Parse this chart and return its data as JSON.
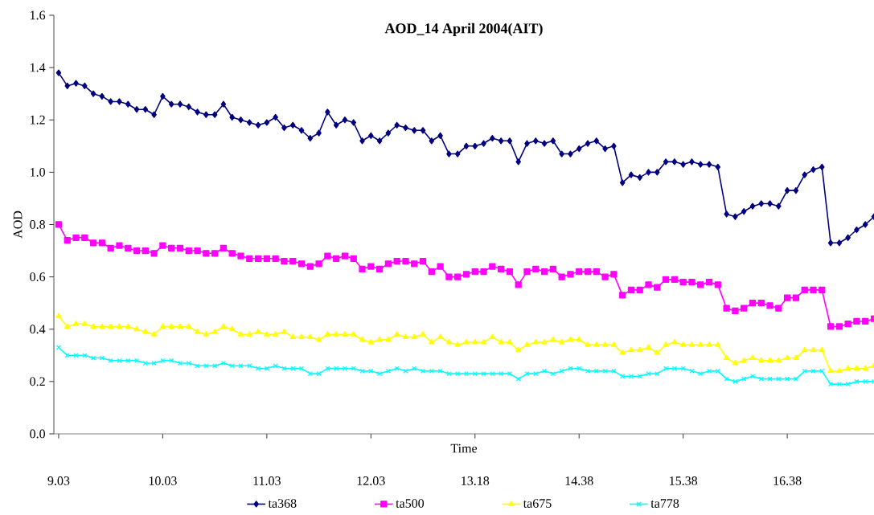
{
  "chart_data": {
    "type": "line",
    "title": "AOD_14 April  2004(AIT)",
    "xlabel": "Time",
    "ylabel": "AOD",
    "categories": [
      "9.03",
      null,
      null,
      null,
      null,
      null,
      null,
      null,
      null,
      null,
      null,
      null,
      "10.03",
      null,
      null,
      null,
      null,
      null,
      null,
      null,
      null,
      null,
      null,
      null,
      "11.03",
      null,
      null,
      null,
      null,
      null,
      null,
      null,
      null,
      null,
      null,
      null,
      "12.03",
      null,
      null,
      null,
      null,
      null,
      null,
      null,
      null,
      null,
      null,
      null,
      "13.18",
      null,
      null,
      null,
      null,
      null,
      null,
      null,
      null,
      null,
      null,
      null,
      "14.38",
      null,
      null,
      null,
      null,
      null,
      null,
      null,
      null,
      null,
      null,
      null,
      "15.38",
      null,
      null,
      null,
      null,
      null,
      null,
      null,
      null,
      null,
      null,
      null,
      "16.38",
      null,
      null,
      null,
      null,
      null,
      null,
      null,
      null,
      null,
      null
    ],
    "series": [
      {
        "name": "ta368",
        "color": "#000080",
        "marker": "diamond",
        "values": [
          1.38,
          1.33,
          1.34,
          1.33,
          1.3,
          1.29,
          1.27,
          1.27,
          1.26,
          1.24,
          1.24,
          1.22,
          1.29,
          1.26,
          1.26,
          1.25,
          1.23,
          1.22,
          1.22,
          1.26,
          1.21,
          1.2,
          1.19,
          1.18,
          1.19,
          1.21,
          1.17,
          1.18,
          1.16,
          1.13,
          1.15,
          1.23,
          1.18,
          1.2,
          1.19,
          1.12,
          1.14,
          1.12,
          1.15,
          1.18,
          1.17,
          1.16,
          1.16,
          1.12,
          1.14,
          1.07,
          1.07,
          1.1,
          1.1,
          1.11,
          1.13,
          1.12,
          1.12,
          1.04,
          1.11,
          1.12,
          1.11,
          1.12,
          1.07,
          1.07,
          1.09,
          1.11,
          1.12,
          1.09,
          1.1,
          0.96,
          0.99,
          0.98,
          1.0,
          1.0,
          1.04,
          1.04,
          1.03,
          1.04,
          1.03,
          1.03,
          1.02,
          0.84,
          0.83,
          0.85,
          0.87,
          0.88,
          0.88,
          0.87,
          0.93,
          0.93,
          0.99,
          1.01,
          1.02,
          0.73,
          0.73,
          0.75,
          0.78,
          0.8,
          0.83
        ]
      },
      {
        "name": "ta500",
        "color": "#ff00ff",
        "marker": "square",
        "values": [
          0.8,
          0.74,
          0.75,
          0.75,
          0.73,
          0.73,
          0.71,
          0.72,
          0.71,
          0.7,
          0.7,
          0.69,
          0.72,
          0.71,
          0.71,
          0.7,
          0.7,
          0.69,
          0.69,
          0.71,
          0.69,
          0.68,
          0.67,
          0.67,
          0.67,
          0.67,
          0.66,
          0.66,
          0.65,
          0.64,
          0.65,
          0.68,
          0.67,
          0.68,
          0.67,
          0.63,
          0.64,
          0.63,
          0.65,
          0.66,
          0.66,
          0.65,
          0.66,
          0.62,
          0.64,
          0.6,
          0.6,
          0.61,
          0.62,
          0.62,
          0.64,
          0.63,
          0.62,
          0.57,
          0.62,
          0.63,
          0.62,
          0.63,
          0.6,
          0.61,
          0.62,
          0.62,
          0.62,
          0.6,
          0.61,
          0.53,
          0.55,
          0.55,
          0.57,
          0.56,
          0.59,
          0.59,
          0.58,
          0.58,
          0.57,
          0.58,
          0.57,
          0.48,
          0.47,
          0.48,
          0.5,
          0.5,
          0.49,
          0.48,
          0.52,
          0.52,
          0.55,
          0.55,
          0.55,
          0.41,
          0.41,
          0.42,
          0.43,
          0.43,
          0.44
        ]
      },
      {
        "name": "ta675",
        "color": "#ffff00",
        "marker": "triangle",
        "values": [
          0.45,
          0.41,
          0.42,
          0.42,
          0.41,
          0.41,
          0.41,
          0.41,
          0.41,
          0.4,
          0.39,
          0.38,
          0.41,
          0.41,
          0.41,
          0.41,
          0.39,
          0.38,
          0.39,
          0.41,
          0.4,
          0.38,
          0.38,
          0.39,
          0.38,
          0.38,
          0.39,
          0.37,
          0.37,
          0.37,
          0.36,
          0.38,
          0.38,
          0.38,
          0.38,
          0.36,
          0.35,
          0.36,
          0.36,
          0.38,
          0.37,
          0.37,
          0.38,
          0.35,
          0.37,
          0.35,
          0.34,
          0.35,
          0.35,
          0.35,
          0.37,
          0.35,
          0.35,
          0.32,
          0.34,
          0.35,
          0.35,
          0.36,
          0.35,
          0.36,
          0.36,
          0.34,
          0.34,
          0.34,
          0.34,
          0.31,
          0.32,
          0.32,
          0.33,
          0.31,
          0.34,
          0.35,
          0.34,
          0.34,
          0.34,
          0.34,
          0.34,
          0.29,
          0.27,
          0.28,
          0.29,
          0.28,
          0.28,
          0.28,
          0.29,
          0.29,
          0.32,
          0.32,
          0.32,
          0.24,
          0.24,
          0.25,
          0.25,
          0.25,
          0.26
        ]
      },
      {
        "name": "ta778",
        "color": "#00ffff",
        "marker": "cross",
        "values": [
          0.33,
          0.3,
          0.3,
          0.3,
          0.29,
          0.29,
          0.28,
          0.28,
          0.28,
          0.28,
          0.27,
          0.27,
          0.28,
          0.28,
          0.27,
          0.27,
          0.26,
          0.26,
          0.26,
          0.27,
          0.26,
          0.26,
          0.26,
          0.25,
          0.25,
          0.26,
          0.25,
          0.25,
          0.25,
          0.23,
          0.23,
          0.25,
          0.25,
          0.25,
          0.25,
          0.24,
          0.24,
          0.23,
          0.24,
          0.25,
          0.24,
          0.25,
          0.24,
          0.24,
          0.24,
          0.23,
          0.23,
          0.23,
          0.23,
          0.23,
          0.23,
          0.23,
          0.23,
          0.21,
          0.23,
          0.23,
          0.24,
          0.23,
          0.24,
          0.25,
          0.25,
          0.24,
          0.24,
          0.24,
          0.24,
          0.22,
          0.22,
          0.22,
          0.23,
          0.23,
          0.25,
          0.25,
          0.25,
          0.24,
          0.23,
          0.24,
          0.24,
          0.21,
          0.2,
          0.21,
          0.22,
          0.21,
          0.21,
          0.21,
          0.21,
          0.21,
          0.24,
          0.24,
          0.24,
          0.19,
          0.19,
          0.19,
          0.2,
          0.2,
          0.2
        ]
      }
    ],
    "ylim": [
      0,
      1.6
    ],
    "yticks": [
      {
        "value": 0,
        "label": "0.0"
      },
      {
        "value": 0.2,
        "label": "0.2"
      },
      {
        "value": 0.4,
        "label": "0.4"
      },
      {
        "value": 0.6,
        "label": "0.6"
      },
      {
        "value": 0.8,
        "label": "0.8"
      },
      {
        "value": 1.0,
        "label": "1.0"
      },
      {
        "value": 1.2,
        "label": "1.2"
      },
      {
        "value": 1.4,
        "label": "1.4"
      },
      {
        "value": 1.6,
        "label": "1.6"
      }
    ],
    "grid": false,
    "legend": "bottom"
  }
}
